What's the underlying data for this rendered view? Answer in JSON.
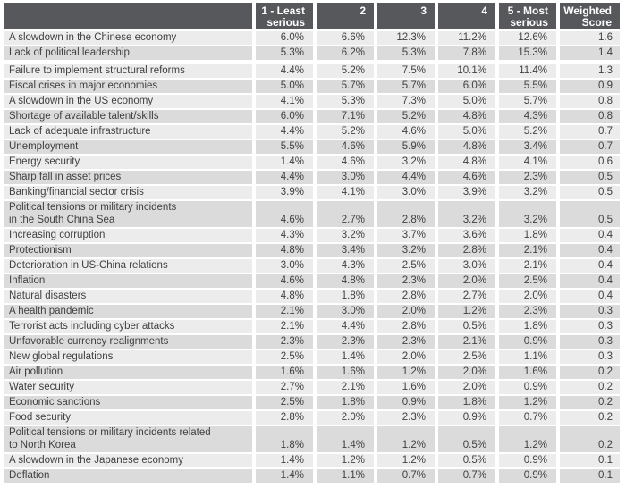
{
  "colors": {
    "background": "#FFFFFF",
    "header_bg": "#57585B",
    "header_text": "#FFFFFF",
    "row_light": "#ECECEC",
    "row_dark": "#DBDBDC",
    "body_text": "#414042",
    "separator": "#FFFFFF"
  },
  "chart_data": {
    "type": "table",
    "title": "",
    "unit": "percent of responses per severity rating, plus weighted score",
    "row_label_header": "",
    "columns": [
      "1 - Least\nserious",
      "2",
      "3",
      "4",
      "5 - Most\nserious",
      "Weighted\nScore"
    ],
    "value_suffix": "%",
    "rows": [
      {
        "label": "A slowdown in the Chinese economy",
        "values": [
          6.0,
          6.6,
          12.3,
          11.2,
          12.6
        ],
        "weighted_score": 1.6
      },
      {
        "label": "Lack of political leadership",
        "values": [
          5.3,
          6.2,
          5.3,
          7.8,
          15.3
        ],
        "weighted_score": 1.4
      },
      {
        "label": "Failure to implement structural reforms",
        "values": [
          4.4,
          5.2,
          7.5,
          10.1,
          11.4
        ],
        "weighted_score": 1.3,
        "spacer_above": true
      },
      {
        "label": "Fiscal crises in major economies",
        "values": [
          5.0,
          5.7,
          5.7,
          6.0,
          5.5
        ],
        "weighted_score": 0.9
      },
      {
        "label": "A slowdown in the US economy",
        "values": [
          4.1,
          5.3,
          7.3,
          5.0,
          5.7
        ],
        "weighted_score": 0.8
      },
      {
        "label": "Shortage of available talent/skills",
        "values": [
          6.0,
          7.1,
          5.2,
          4.8,
          4.3
        ],
        "weighted_score": 0.8
      },
      {
        "label": "Lack of adequate infrastructure",
        "values": [
          4.4,
          5.2,
          4.6,
          5.0,
          5.2
        ],
        "weighted_score": 0.7
      },
      {
        "label": "Unemployment",
        "values": [
          5.5,
          4.6,
          5.9,
          4.8,
          3.4
        ],
        "weighted_score": 0.7
      },
      {
        "label": "Energy security",
        "values": [
          1.4,
          4.6,
          3.2,
          4.8,
          4.1
        ],
        "weighted_score": 0.6
      },
      {
        "label": "Sharp fall in asset prices",
        "values": [
          4.4,
          3.0,
          4.4,
          4.6,
          2.3
        ],
        "weighted_score": 0.5
      },
      {
        "label": "Banking/financial sector crisis",
        "values": [
          3.9,
          4.1,
          3.0,
          3.9,
          3.2
        ],
        "weighted_score": 0.5
      },
      {
        "label": "Political tensions or military incidents\nin the South China Sea",
        "values": [
          4.6,
          2.7,
          2.8,
          3.2,
          3.2
        ],
        "weighted_score": 0.5
      },
      {
        "label": "Increasing corruption",
        "values": [
          4.3,
          3.2,
          3.7,
          3.6,
          1.8
        ],
        "weighted_score": 0.4
      },
      {
        "label": "Protectionism",
        "values": [
          4.8,
          3.4,
          3.2,
          2.8,
          2.1
        ],
        "weighted_score": 0.4
      },
      {
        "label": "Deterioration in US-China relations",
        "values": [
          3.0,
          4.3,
          2.5,
          3.0,
          2.1
        ],
        "weighted_score": 0.4
      },
      {
        "label": "Inflation",
        "values": [
          4.6,
          4.8,
          2.3,
          2.0,
          2.5
        ],
        "weighted_score": 0.4
      },
      {
        "label": "Natural disasters",
        "values": [
          4.8,
          1.8,
          2.8,
          2.7,
          2.0
        ],
        "weighted_score": 0.4
      },
      {
        "label": "A health pandemic",
        "values": [
          2.1,
          3.0,
          2.0,
          1.2,
          2.3
        ],
        "weighted_score": 0.3
      },
      {
        "label": "Terrorist acts including cyber attacks",
        "values": [
          2.1,
          4.4,
          2.8,
          0.5,
          1.8
        ],
        "weighted_score": 0.3
      },
      {
        "label": "Unfavorable currency realignments",
        "values": [
          2.3,
          2.3,
          2.3,
          2.1,
          0.9
        ],
        "weighted_score": 0.3
      },
      {
        "label": "New global regulations",
        "values": [
          2.5,
          1.4,
          2.0,
          2.5,
          1.1
        ],
        "weighted_score": 0.3
      },
      {
        "label": "Air pollution",
        "values": [
          1.6,
          1.6,
          1.2,
          2.0,
          1.6
        ],
        "weighted_score": 0.2
      },
      {
        "label": "Water security",
        "values": [
          2.7,
          2.1,
          1.6,
          2.0,
          0.9
        ],
        "weighted_score": 0.2
      },
      {
        "label": "Economic sanctions",
        "values": [
          2.5,
          1.8,
          0.9,
          1.8,
          1.2
        ],
        "weighted_score": 0.2
      },
      {
        "label": "Food security",
        "values": [
          2.8,
          2.0,
          2.3,
          0.9,
          0.7
        ],
        "weighted_score": 0.2
      },
      {
        "label": "Political tensions or military incidents related\nto North Korea",
        "values": [
          1.8,
          1.4,
          1.2,
          0.5,
          1.2
        ],
        "weighted_score": 0.2
      },
      {
        "label": "A slowdown in the Japanese economy",
        "values": [
          1.4,
          1.2,
          1.2,
          0.5,
          0.9
        ],
        "weighted_score": 0.1
      },
      {
        "label": "Deflation",
        "values": [
          1.4,
          1.1,
          0.7,
          0.7,
          0.9
        ],
        "weighted_score": 0.1
      }
    ]
  }
}
